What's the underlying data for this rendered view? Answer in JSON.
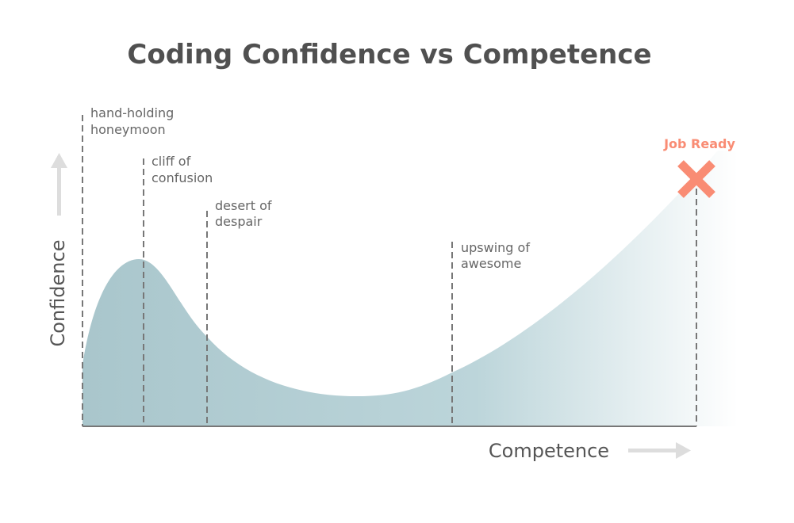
{
  "title": "Coding Confidence vs Competence",
  "y_axis_label": "Confidence",
  "x_axis_label": "Competence",
  "phases": [
    {
      "lines": [
        "hand-holding",
        "honeymoon"
      ]
    },
    {
      "lines": [
        "cliff of",
        "confusion"
      ]
    },
    {
      "lines": [
        "desert of",
        "despair"
      ]
    },
    {
      "lines": [
        "upswing of",
        "awesome"
      ]
    }
  ],
  "goal_label": "Job Ready"
}
